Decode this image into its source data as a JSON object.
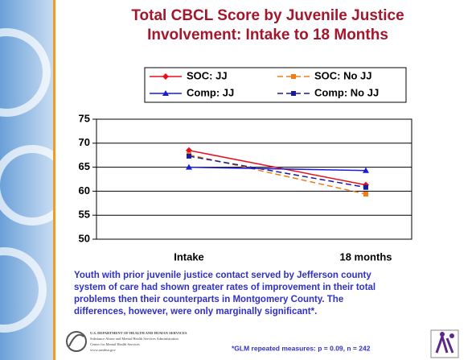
{
  "chart_data": {
    "type": "line",
    "title": [
      "Total CBCL Score by Juvenile Justice",
      "Involvement: Intake to 18 Months"
    ],
    "categories": [
      "Intake",
      "18 months"
    ],
    "series": [
      {
        "name": "SOC: JJ",
        "color": "#e8101c",
        "marker": "diamond",
        "dash": false,
        "values": [
          68.5,
          61.3
        ]
      },
      {
        "name": "SOC: No JJ",
        "color": "#f07c1c",
        "marker": "square",
        "dash": true,
        "values": [
          67.6,
          59.4
        ]
      },
      {
        "name": "Comp: JJ",
        "color": "#1a1adc",
        "marker": "triangle",
        "dash": false,
        "values": [
          65.0,
          64.3
        ]
      },
      {
        "name": "Comp: No JJ",
        "color": "#1a1a9c",
        "marker": "square",
        "dash": true,
        "values": [
          67.3,
          60.8
        ]
      }
    ],
    "ylim": [
      50,
      75
    ],
    "yticks": [
      50,
      55,
      60,
      65,
      70,
      75
    ],
    "grid": true,
    "caption": [
      "Youth with prior juvenile justice contact served by Jefferson county",
      "system of care had shown greater rates of improvement in their total",
      "problems then their counterparts in Montgomery County.  The",
      "differences, however, were only marginally significant*."
    ],
    "footnote": "*GLM repeated measures: p = 0.09, n = 242",
    "logo_text": [
      "U.S. DEPARTMENT OF HEALTH AND HUMAN SERVICES",
      "Substance Abuse and Mental Health Services Administration",
      "Center for Mental Health Services",
      "www.samhsa.gov"
    ]
  }
}
